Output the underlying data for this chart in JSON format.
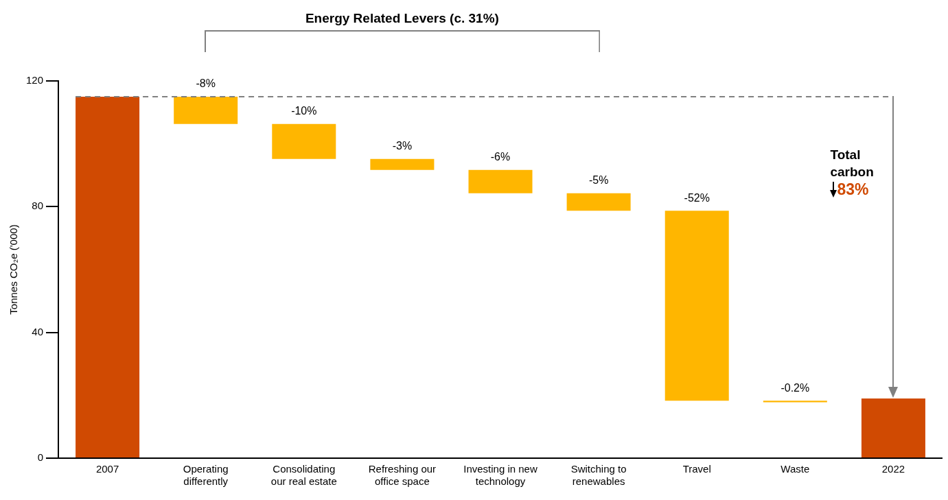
{
  "chart_data": {
    "type": "bar",
    "categories": [
      "2007",
      "Operating differently",
      "Consolidating our real estate",
      "Refreshing our office space",
      "Investing in new technology",
      "Switching to renewables",
      "Travel",
      "Waste",
      "2022"
    ],
    "values": [
      115,
      -8.7,
      -11.1,
      -3.5,
      -7.4,
      -5.6,
      -60.4,
      -0.5,
      19
    ],
    "base": [
      0,
      115,
      106.3,
      95.2,
      91.7,
      84.3,
      78.7,
      18.3,
      0
    ],
    "colors": [
      "#d04a02",
      "#ffb600",
      "#ffb600",
      "#ffb600",
      "#ffb600",
      "#ffb600",
      "#ffb600",
      "#ffb600",
      "#d04a02"
    ],
    "ylabel": "Tonnes CO₂e ('000)",
    "ylim": [
      0,
      120
    ],
    "yticks": [
      0,
      40,
      80,
      120
    ],
    "ref_lines": [
      {
        "axis": "y",
        "value": 115,
        "color": "#808080",
        "line_style": "dashed"
      }
    ],
    "annotations": [
      "Energy Related Levers (c. 31%)",
      "Total carbon",
      "83%",
      {
        "text": "-8%",
        "x": "Operating differently",
        "y": 115
      },
      {
        "text": "-10%",
        "x": "Consolidating our real estate",
        "y": 106.3
      },
      {
        "text": "-3%",
        "x": "Refreshing our office space",
        "y": 95.2
      },
      {
        "text": "-6%",
        "x": "Investing in new technology",
        "y": 91.7
      },
      {
        "text": "-5%",
        "x": "Switching to renewables",
        "y": 84.3
      },
      {
        "text": "-52%",
        "x": "Travel",
        "y": 78.7
      },
      {
        "text": "-0.2%",
        "x": "Waste",
        "y": 18.3
      }
    ],
    "legend": false
  }
}
